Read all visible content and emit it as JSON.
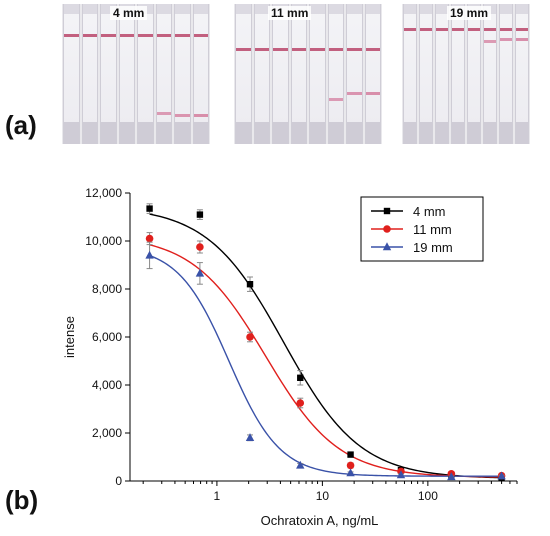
{
  "panels": {
    "a": "(a)",
    "b": "(b)"
  },
  "strip_groups": [
    {
      "label": "4 mm",
      "control_line_color": "#c2607f",
      "test_line_color": "#d685a4"
    },
    {
      "label": "11 mm",
      "control_line_color": "#c2607f",
      "test_line_color": "#d685a4"
    },
    {
      "label": "19 mm",
      "control_line_color": "#c2607f",
      "test_line_color": "#d685a4"
    }
  ],
  "chart_data": {
    "type": "scatter",
    "xlabel": "Ochratoxin A, ng/mL",
    "ylabel": "intense",
    "x_scale": "log",
    "xlim": [
      0.15,
      700
    ],
    "ylim": [
      0,
      12000
    ],
    "x_ticks": [
      1,
      10,
      100
    ],
    "x_tick_labels": [
      "1",
      "10",
      "100"
    ],
    "y_ticks": [
      0,
      2000,
      4000,
      6000,
      8000,
      10000,
      12000
    ],
    "y_tick_labels": [
      "0",
      "2,000",
      "4,000",
      "6,000",
      "8,000",
      "10,000",
      "12,000"
    ],
    "grid": false,
    "legend_position": "top-right",
    "x": [
      0.23,
      0.69,
      2.06,
      6.17,
      18.5,
      55.6,
      167,
      500
    ],
    "series": [
      {
        "name": "4 mm",
        "color": "#000000",
        "marker": "square",
        "values": [
          11350,
          11100,
          8200,
          4300,
          1100,
          450,
          250,
          150
        ],
        "errors": [
          200,
          200,
          300,
          300,
          100,
          60,
          40,
          40
        ],
        "fit": {
          "top": 11450,
          "bottom": 100,
          "ec50": 4.3,
          "hill": 1.2
        }
      },
      {
        "name": "11 mm",
        "color": "#e0201d",
        "marker": "circle",
        "values": [
          10100,
          9750,
          6000,
          3250,
          650,
          400,
          300,
          220
        ],
        "errors": [
          250,
          250,
          200,
          200,
          100,
          60,
          40,
          40
        ],
        "fit": {
          "top": 10250,
          "bottom": 150,
          "ec50": 2.9,
          "hill": 1.25
        }
      },
      {
        "name": "19 mm",
        "color": "#3a52a8",
        "marker": "triangle",
        "values": [
          9400,
          8650,
          1800,
          650,
          330,
          250,
          170,
          200
        ],
        "errors": [
          550,
          450,
          120,
          80,
          50,
          40,
          30,
          40
        ],
        "fit": {
          "top": 9800,
          "bottom": 200,
          "ec50": 1.3,
          "hill": 1.8
        }
      }
    ]
  }
}
